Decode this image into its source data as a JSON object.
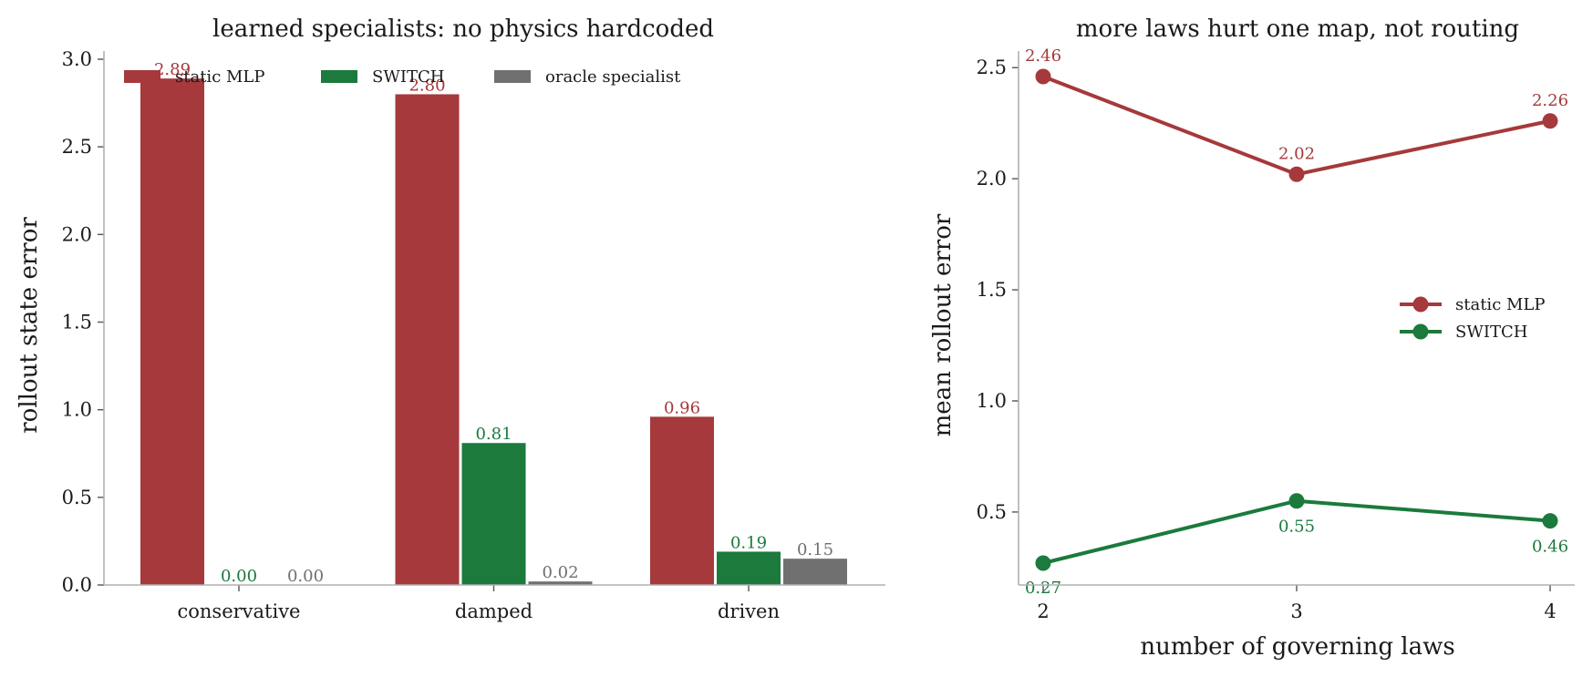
{
  "chart_data": [
    {
      "type": "bar",
      "title": "learned specialists: no physics hardcoded",
      "xlabel": "",
      "ylabel": "rollout state error",
      "categories": [
        "conservative",
        "damped",
        "driven"
      ],
      "series": [
        {
          "name": "static MLP",
          "values": [
            2.89,
            2.8,
            0.96
          ],
          "labels": [
            "2.89",
            "2.80",
            "0.96"
          ],
          "color": "#a5393b"
        },
        {
          "name": "SWITCH",
          "values": [
            0.0,
            0.81,
            0.19
          ],
          "labels": [
            "0.00",
            "0.81",
            "0.19"
          ],
          "color": "#1b7a3c"
        },
        {
          "name": "oracle specialist",
          "values": [
            0.0,
            0.02,
            0.15
          ],
          "labels": [
            "0.00",
            "0.02",
            "0.15"
          ],
          "color": "#707070"
        }
      ],
      "ylim": [
        0,
        3.05
      ],
      "yticks": [
        0.0,
        0.5,
        1.0,
        1.5,
        2.0,
        2.5,
        3.0
      ],
      "ytick_labels": [
        "0.0",
        "0.5",
        "1.0",
        "1.5",
        "2.0",
        "2.5",
        "3.0"
      ],
      "legend": "top-left",
      "grid": false
    },
    {
      "type": "line",
      "title": "more laws hurt one map, not routing",
      "xlabel": "number of governing laws",
      "ylabel": "mean rollout error",
      "x": [
        2,
        3,
        4
      ],
      "xtick_labels": [
        "2",
        "3",
        "4"
      ],
      "series": [
        {
          "name": "static MLP",
          "values": [
            2.46,
            2.02,
            2.26
          ],
          "labels": [
            "2.46",
            "2.02",
            "2.26"
          ],
          "color": "#a5393b"
        },
        {
          "name": "SWITCH",
          "values": [
            0.27,
            0.55,
            0.46
          ],
          "labels": [
            "0.27",
            "0.55",
            "0.46"
          ],
          "color": "#1b7a3c"
        }
      ],
      "xlim": [
        1.95,
        4.1
      ],
      "ylim": [
        0.17,
        2.58
      ],
      "yticks": [
        0.5,
        1.0,
        1.5,
        2.0,
        2.5
      ],
      "ytick_labels": [
        "0.5",
        "1.0",
        "1.5",
        "2.0",
        "2.5"
      ],
      "legend": "center-right",
      "grid": false
    }
  ]
}
